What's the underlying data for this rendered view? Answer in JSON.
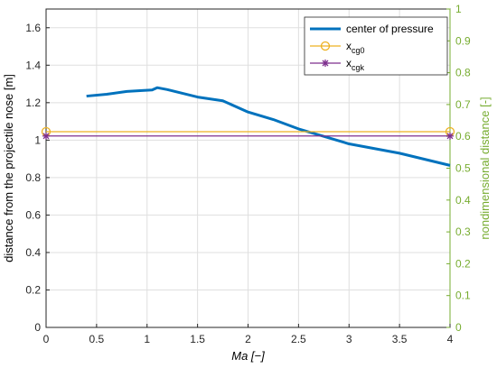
{
  "chart_data": {
    "type": "line",
    "xlabel": "Ma [−]",
    "ylabel_left": "distance from the projectile nose [m]",
    "ylabel_right": "nondimensional distance [-]",
    "xlim": [
      0,
      4
    ],
    "ylim_left": [
      0,
      1.7
    ],
    "ylim_right": [
      0,
      1
    ],
    "grid": true,
    "legend_position": "top-right",
    "x_ticks": [
      "0",
      "0.5",
      "1",
      "1.5",
      "2",
      "2.5",
      "3",
      "3.5",
      "4"
    ],
    "y_left_ticks": [
      "0",
      "0.2",
      "0.4",
      "0.6",
      "0.8",
      "1",
      "1.2",
      "1.4",
      "1.6"
    ],
    "y_right_ticks": [
      "0",
      "0.1",
      "0.2",
      "0.3",
      "0.4",
      "0.5",
      "0.6",
      "0.7",
      "0.8",
      "0.9",
      "1"
    ],
    "right_axis_color": "#77ac30",
    "series": [
      {
        "name": "center of pressure",
        "color": "#0072bd",
        "marker": "none",
        "x": [
          0.4,
          0.6,
          0.8,
          0.95,
          1.05,
          1.1,
          1.2,
          1.5,
          1.75,
          2.0,
          2.25,
          2.5,
          3.0,
          3.5,
          4.0
        ],
        "y": [
          1.235,
          1.245,
          1.26,
          1.265,
          1.268,
          1.28,
          1.27,
          1.23,
          1.21,
          1.15,
          1.11,
          1.06,
          0.98,
          0.93,
          0.865
        ]
      },
      {
        "name": "x",
        "subscript": "cg0",
        "color": "#edb120",
        "marker": "circle",
        "x": [
          0,
          4
        ],
        "y": [
          1.045,
          1.045
        ]
      },
      {
        "name": "x",
        "subscript": "cgk",
        "color": "#7e2f8e",
        "marker": "star",
        "x": [
          0,
          4
        ],
        "y": [
          1.022,
          1.022
        ]
      }
    ]
  }
}
